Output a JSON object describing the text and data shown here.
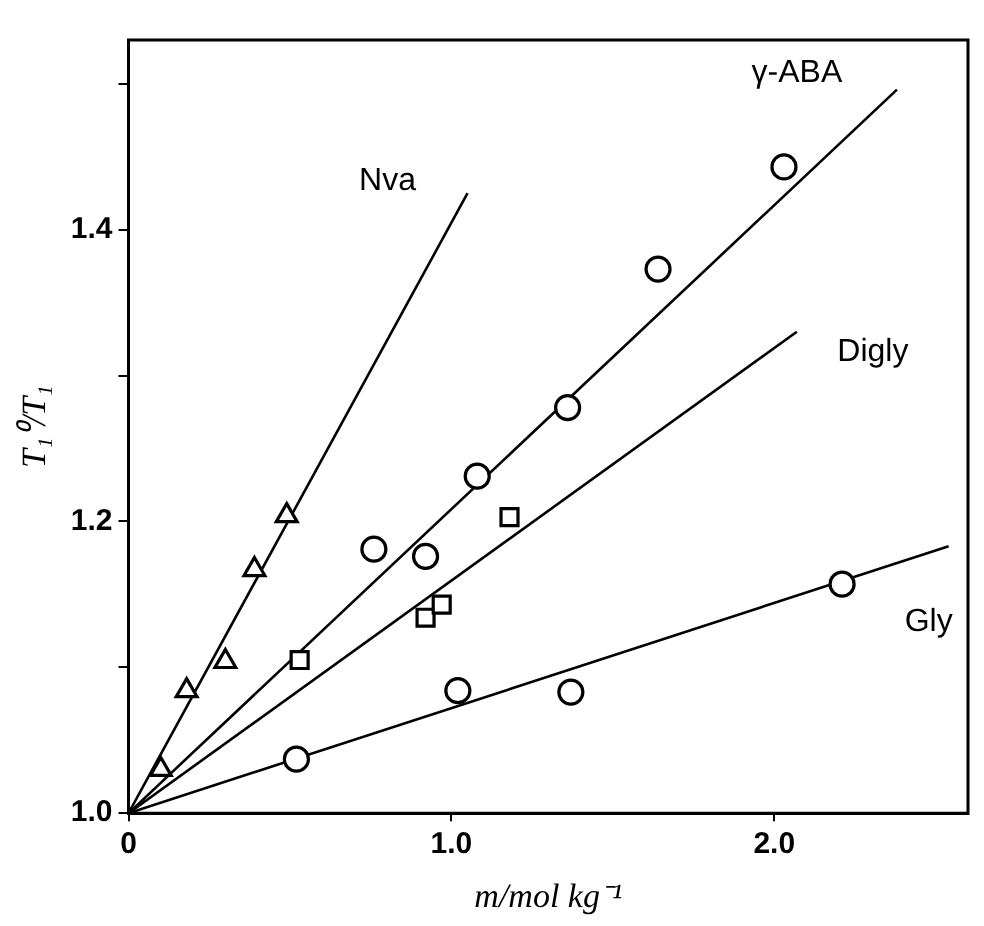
{
  "chart_data": {
    "type": "scatter",
    "xlabel": "m/mol kg⁻¹",
    "ylabel": "T₁⁰/T₁",
    "xlim": [
      0,
      2.6
    ],
    "ylim": [
      1.0,
      1.53
    ],
    "xticks": [
      0,
      {
        "value": 1,
        "label": "1.0"
      },
      {
        "value": 2,
        "label": "2.0"
      }
    ],
    "yticks": [
      {
        "value": 1,
        "label": "1.0"
      },
      {
        "value": 1.1,
        "label": null
      },
      {
        "value": 1.2,
        "label": "1.2"
      },
      {
        "value": 1.3,
        "label": null
      },
      {
        "value": 1.4,
        "label": "1.4"
      },
      {
        "value": 1.5,
        "label": null
      }
    ],
    "grid": false,
    "legend": false,
    "series": [
      {
        "marker": "triangle",
        "color": "#000000",
        "x": [
          0.1,
          0.18,
          0.3,
          0.39,
          0.49
        ],
        "values": [
          1.03,
          1.084,
          1.104,
          1.167,
          1.204
        ]
      },
      {
        "marker": "circle",
        "color": "#000000",
        "x": [
          0.76,
          0.92,
          1.08,
          1.36,
          1.64,
          2.03
        ],
        "values": [
          1.181,
          1.176,
          1.231,
          1.278,
          1.373,
          1.443
        ]
      },
      {
        "marker": "square",
        "color": "#000000",
        "x": [
          0.53,
          0.92,
          0.97,
          1.18
        ],
        "values": [
          1.105,
          1.134,
          1.143,
          1.203
        ]
      },
      {
        "marker": "circle",
        "color": "#000000",
        "x": [
          0.52,
          1.02,
          1.37,
          2.21
        ],
        "values": [
          1.037,
          1.084,
          1.083,
          1.157
        ]
      },
      {
        "type": "line",
        "name": "Nva",
        "marker": "none",
        "color": "#000000",
        "x": [
          0,
          1.05
        ],
        "values": [
          1.0,
          1.425
        ]
      },
      {
        "type": "line",
        "name": "γ-ABA",
        "marker": "none",
        "color": "#000000",
        "x": [
          0,
          2.38
        ],
        "values": [
          1.0,
          1.496
        ]
      },
      {
        "type": "line",
        "name": "Digly",
        "marker": "none",
        "color": "#000000",
        "x": [
          0,
          2.07
        ],
        "values": [
          1.0,
          1.33
        ]
      },
      {
        "type": "line",
        "name": "Gly",
        "marker": "none",
        "color": "#000000",
        "x": [
          0,
          2.54
        ],
        "values": [
          1.0,
          1.183
        ]
      }
    ]
  }
}
